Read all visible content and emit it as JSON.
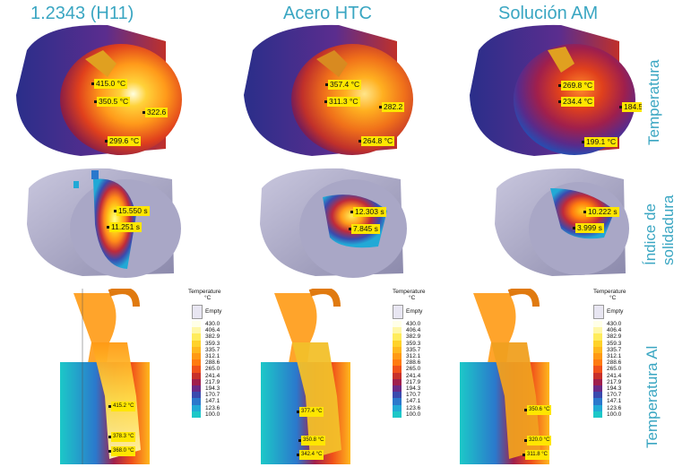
{
  "columns": [
    {
      "title": "1.2343 (H11)"
    },
    {
      "title": "Acero HTC"
    },
    {
      "title": "Solución AM"
    }
  ],
  "rows": [
    {
      "title": "Temperatura"
    },
    {
      "title": "Índice de solidadura"
    },
    {
      "title": "Temperatura Al"
    }
  ],
  "temperatura_labels": [
    [
      "415.0 °C",
      "350.5 °C",
      "322.6",
      "299.6 °C"
    ],
    [
      "357.4 °C",
      "311.3 °C",
      "282.2",
      "264.8 °C"
    ],
    [
      "269.8 °C",
      "234.4 °C",
      "184.5",
      "199.1 °C"
    ]
  ],
  "soldadura_labels": [
    [
      "15.550 s",
      "11.251 s"
    ],
    [
      "12.303 s",
      "7.845 s"
    ],
    [
      "10.222 s",
      "3.999 s"
    ]
  ],
  "al_labels": [
    [
      "415.2 °C",
      "378.3 °C",
      "368.0 °C"
    ],
    [
      "377.4 °C",
      "350.8 °C",
      "342.4 °C"
    ],
    [
      "350.6 °C",
      "320.0 °C",
      "311.8 °C"
    ]
  ],
  "legend": {
    "title": "Temperature",
    "unit": "°C",
    "empty": "Empty",
    "values": [
      "430.0",
      "406.4",
      "382.9",
      "359.3",
      "335.7",
      "312.1",
      "288.6",
      "265.0",
      "241.4",
      "217.9",
      "194.3",
      "170.7",
      "147.1",
      "123.6",
      "100.0"
    ],
    "colors": [
      "#ffffe8",
      "#fff7a8",
      "#ffec5c",
      "#ffd22a",
      "#ffb81d",
      "#ff9a14",
      "#ff7a10",
      "#f0501a",
      "#c8302a",
      "#a01f4c",
      "#6a2a86",
      "#3b4aae",
      "#2b78cc",
      "#21a9d6",
      "#1cc8c8"
    ]
  },
  "colors": {
    "accent": "#3aa6c2",
    "tag_bg": "#ffe600"
  }
}
